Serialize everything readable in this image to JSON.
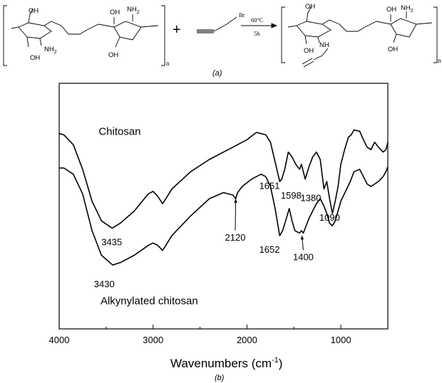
{
  "scheme": {
    "reactant": {
      "top_oh_left": "OH",
      "nh2_left": "NH",
      "nh2_left_sub": "2",
      "bottom_oh_left": "OH",
      "top_oh_right": "OH",
      "nh2_right": "NH",
      "nh2_right_sub": "2",
      "bottom_oh_right": "OH",
      "repeat_n": "n"
    },
    "plus": "+",
    "reagent_br": "Br",
    "conditions_temp": "60°C",
    "conditions_time": "5h",
    "product": {
      "top_oh_left": "OH",
      "nh": "NH",
      "bottom_oh_left": "OH",
      "top_oh_right": "OH",
      "nh2_right": "NH",
      "nh2_right_sub": "2",
      "bottom_oh_right": "OH",
      "repeat_n": "n"
    },
    "caption": "(a)"
  },
  "chart_data": {
    "type": "line",
    "title": "",
    "xlabel": "Wavenumbers (cm",
    "xlabel_sup": "-1",
    "xlabel_close": ")",
    "ylabel": "",
    "xlim": [
      4000,
      500
    ],
    "x_reversed": true,
    "xticks": [
      "4000",
      "3000",
      "2000",
      "1000"
    ],
    "grid": false,
    "caption": "(b)",
    "series": [
      {
        "name": "Chitosan",
        "x": [
          4000,
          3950,
          3850,
          3750,
          3650,
          3550,
          3435,
          3350,
          3200,
          3050,
          3000,
          2950,
          2900,
          2880,
          2800,
          2600,
          2400,
          2200,
          2000,
          1900,
          1800,
          1750,
          1700,
          1651,
          1630,
          1598,
          1560,
          1520,
          1480,
          1440,
          1420,
          1380,
          1340,
          1300,
          1260,
          1220,
          1180,
          1150,
          1120,
          1090,
          1060,
          1030,
          1000,
          960,
          920,
          890,
          860,
          800,
          760,
          720,
          680,
          640,
          600,
          550,
          520,
          500
        ],
        "y": [
          79.5,
          79,
          75,
          65,
          52,
          44,
          41,
          43,
          48,
          55,
          56,
          54,
          51,
          52,
          57,
          64,
          69,
          73,
          77,
          80,
          79,
          76,
          68,
          60,
          61,
          65,
          72,
          70,
          67,
          65,
          67,
          61,
          66,
          70,
          72,
          69,
          57,
          60,
          53,
          47,
          52,
          58,
          67,
          73,
          78,
          79,
          81,
          80.5,
          77,
          74,
          73,
          76,
          74,
          72,
          73,
          76
        ]
      },
      {
        "name": "Alkynylated chitosan",
        "x": [
          4000,
          3950,
          3850,
          3750,
          3650,
          3550,
          3430,
          3350,
          3200,
          3050,
          3000,
          2950,
          2900,
          2880,
          2800,
          2600,
          2400,
          2250,
          2150,
          2120,
          2100,
          2050,
          1950,
          1850,
          1800,
          1750,
          1700,
          1652,
          1620,
          1580,
          1550,
          1520,
          1490,
          1440,
          1420,
          1400,
          1370,
          1340,
          1300,
          1260,
          1220,
          1180,
          1150,
          1120,
          1090,
          1060,
          1030,
          1000,
          950,
          900,
          860,
          800,
          760,
          720,
          680,
          640,
          600,
          550,
          520,
          500
        ],
        "y": [
          65.5,
          65.5,
          63,
          55,
          40,
          30,
          26,
          27,
          30,
          34,
          35,
          34,
          32,
          33,
          38,
          46,
          53,
          55.5,
          54.5,
          53,
          55.5,
          58,
          61,
          63,
          62,
          58,
          49,
          38,
          40,
          45,
          49,
          44,
          40,
          39,
          40,
          39,
          42,
          45,
          48,
          51,
          53,
          50,
          47,
          43,
          42,
          44,
          48,
          52,
          56,
          60,
          64,
          65,
          62,
          59,
          58,
          59,
          60,
          62,
          64,
          66
        ]
      }
    ],
    "annotations": [
      {
        "text": "Chitosan",
        "x": 3580,
        "y": 79,
        "series": 0,
        "kind": "label"
      },
      {
        "text": "3435",
        "x": 3440,
        "y": 34,
        "series": 0,
        "kind": "peak"
      },
      {
        "text": "1651",
        "x": 1760,
        "y": 57,
        "series": 0,
        "kind": "peak"
      },
      {
        "text": "1598",
        "x": 1530,
        "y": 53,
        "series": 0,
        "kind": "peak"
      },
      {
        "text": "1380",
        "x": 1320,
        "y": 52,
        "series": 0,
        "kind": "peak"
      },
      {
        "text": "1090",
        "x": 1120,
        "y": 44,
        "series": 0,
        "kind": "peak"
      },
      {
        "text": "2120",
        "x": 2125,
        "y": 36,
        "series": 1,
        "kind": "arrow",
        "target_x": 2120,
        "target_y": 53
      },
      {
        "text": "1652",
        "x": 1760,
        "y": 31,
        "series": 1,
        "kind": "peak"
      },
      {
        "text": "1400",
        "x": 1400,
        "y": 28,
        "series": 1,
        "kind": "arrow",
        "target_x": 1415,
        "target_y": 38
      },
      {
        "text": "3430",
        "x": 3520,
        "y": 17,
        "series": 1,
        "kind": "peak"
      },
      {
        "text": "Alkynylated chitosan",
        "x": 3560,
        "y": 10,
        "series": 1,
        "kind": "label"
      }
    ]
  }
}
